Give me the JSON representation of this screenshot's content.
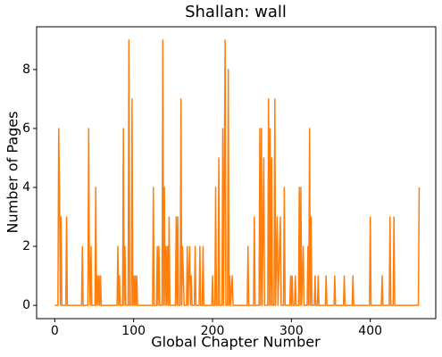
{
  "chart_data": {
    "type": "line",
    "title": "Shallan: wall",
    "x_label": "Global Chapter Number",
    "y_label": "Number of Pages",
    "color": "#ff7f0e",
    "x": [
      0,
      4,
      5,
      6,
      7,
      8,
      9,
      14,
      15,
      16,
      34,
      35,
      36,
      42,
      43,
      44,
      45,
      46,
      47,
      51,
      52,
      53,
      54,
      55,
      56,
      57,
      58,
      59,
      79,
      80,
      81,
      82,
      83,
      86,
      87,
      88,
      89,
      90,
      93,
      94,
      95,
      97,
      98,
      99,
      100,
      101,
      102,
      103,
      104,
      105,
      124,
      125,
      126,
      129,
      130,
      131,
      132,
      133,
      136,
      137,
      138,
      139,
      140,
      141,
      142,
      143,
      144,
      145,
      146,
      153,
      154,
      155,
      156,
      157,
      159,
      160,
      161,
      162,
      163,
      164,
      167,
      168,
      169,
      171,
      172,
      173,
      174,
      177,
      178,
      179,
      183,
      184,
      185,
      187,
      188,
      189,
      199,
      200,
      201,
      203,
      204,
      205,
      207,
      208,
      209,
      212,
      213,
      214,
      216,
      217,
      219,
      220,
      221,
      222,
      223,
      225,
      226,
      244,
      245,
      246,
      252,
      253,
      254,
      259,
      260,
      261,
      262,
      263,
      265,
      266,
      270,
      271,
      272,
      273,
      274,
      275,
      276,
      278,
      279,
      280,
      282,
      283,
      286,
      287,
      290,
      291,
      292,
      298,
      299,
      300,
      301,
      302,
      304,
      305,
      306,
      309,
      310,
      311,
      312,
      313,
      315,
      316,
      320,
      321,
      322,
      323,
      324,
      325,
      326,
      329,
      330,
      331,
      333,
      334,
      335,
      343,
      344,
      345,
      354,
      355,
      356,
      366,
      367,
      368,
      377,
      378,
      379,
      399,
      400,
      401,
      414,
      415,
      416,
      424,
      425,
      426,
      429,
      430,
      431,
      461,
      462
    ],
    "values": [
      0,
      0,
      6,
      4,
      0,
      3,
      0,
      0,
      3,
      0,
      0,
      2,
      0,
      0,
      6,
      1,
      0,
      2,
      0,
      0,
      4,
      0,
      1,
      0,
      1,
      0,
      1,
      0,
      0,
      2,
      0,
      1,
      0,
      0,
      6,
      0,
      2,
      0,
      0,
      9,
      0,
      0,
      7,
      0,
      1,
      0,
      1,
      0,
      1,
      0,
      0,
      4,
      0,
      0,
      2,
      0,
      2,
      0,
      0,
      9,
      0,
      4,
      0,
      2,
      0,
      2,
      0,
      3,
      0,
      0,
      3,
      0,
      3,
      0,
      0,
      7,
      0,
      2,
      1,
      0,
      0,
      2,
      0,
      2,
      0,
      1,
      0,
      0,
      2,
      0,
      0,
      2,
      0,
      0,
      2,
      0,
      0,
      1,
      0,
      0,
      4,
      0,
      0,
      5,
      0,
      0,
      6,
      0,
      9,
      0,
      0,
      8,
      0,
      1,
      0,
      1,
      0,
      0,
      2,
      0,
      0,
      3,
      0,
      0,
      6,
      0,
      6,
      0,
      5,
      0,
      0,
      7,
      0,
      6,
      0,
      5,
      0,
      0,
      7,
      0,
      3,
      0,
      3,
      0,
      0,
      4,
      0,
      0,
      1,
      0,
      1,
      0,
      0,
      1,
      0,
      0,
      4,
      0,
      4,
      0,
      2,
      0,
      0,
      2,
      0,
      6,
      0,
      3,
      0,
      0,
      1,
      0,
      0,
      1,
      0,
      0,
      1,
      0,
      0,
      1,
      0,
      0,
      1,
      0,
      0,
      1,
      0,
      0,
      3,
      0,
      0,
      1,
      0,
      0,
      3,
      0,
      0,
      3,
      0,
      0,
      4
    ],
    "xlim": [
      -23,
      483
    ],
    "xticks": [
      0,
      100,
      200,
      300,
      400
    ],
    "ylim": [
      -0.45,
      9.45
    ],
    "yticks": [
      0,
      2,
      4,
      6,
      8
    ]
  }
}
